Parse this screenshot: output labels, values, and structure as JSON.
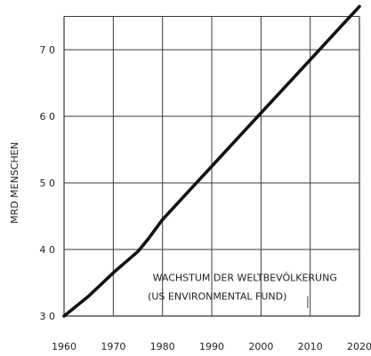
{
  "chart_data": {
    "type": "line",
    "ylabel": "MRD MENSCHEN",
    "xlim": [
      1960,
      2020
    ],
    "ylim": [
      3.0,
      7.5
    ],
    "grid": true,
    "x_ticks": [
      1960,
      1970,
      1980,
      1990,
      2000,
      2010,
      2020
    ],
    "x_tick_labels": [
      "1960",
      "1970",
      "1980",
      "1990",
      "2000",
      "2010",
      "2020"
    ],
    "y_ticks": [
      3.0,
      4.0,
      5.0,
      6.0,
      7.0
    ],
    "y_tick_labels": [
      "3 0",
      "4 0",
      "5 0",
      "6 0",
      "7 0"
    ],
    "series": [
      {
        "x": [
          1960,
          1965,
          1970,
          1975,
          1977,
          1980,
          1985,
          1990,
          1995,
          2000,
          2005,
          2010,
          2015,
          2020
        ],
        "y": [
          3.0,
          3.3,
          3.65,
          3.97,
          4.15,
          4.45,
          4.85,
          5.25,
          5.65,
          6.05,
          6.45,
          6.85,
          7.25,
          7.65
        ]
      }
    ],
    "annotations": [
      {
        "text": "WACHSTUM DER WELTBEVÖLKERUNG",
        "x": 1978,
        "y": 3.53
      },
      {
        "text": "(US ENVIRONMENTAL FUND)",
        "x": 1977,
        "y": 3.25
      }
    ]
  }
}
